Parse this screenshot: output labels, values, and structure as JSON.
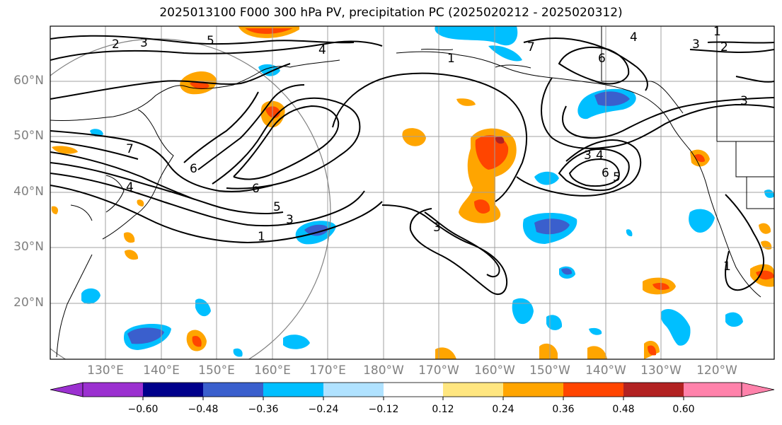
{
  "title": "2025013100 F000 300 hPa PV, precipitation PC (2025020212 - 2025020312)",
  "axes": {
    "lat_labels": [
      "60°N",
      "50°N",
      "40°N",
      "30°N",
      "20°N"
    ],
    "lon_labels": [
      "130°E",
      "140°E",
      "150°E",
      "160°E",
      "170°E",
      "180°W",
      "170°W",
      "160°W",
      "150°W",
      "140°W",
      "130°W",
      "120°W"
    ]
  },
  "colorbar": {
    "ticks": [
      "−0.60",
      "−0.48",
      "−0.36",
      "−0.24",
      "−0.12",
      "0.12",
      "0.24",
      "0.36",
      "0.48",
      "0.60"
    ],
    "colors": [
      "#9b30d0",
      "#00008b",
      "#3a5fcd",
      "#00bfff",
      "#b0e2ff",
      "#ffffff",
      "#ffe680",
      "#ffa500",
      "#ff4500",
      "#b22222",
      "#ff82ab"
    ]
  },
  "contour_labels": [
    "2",
    "3",
    "5",
    "4",
    "1",
    "7",
    "6",
    "5",
    "3",
    "1",
    "3",
    "6",
    "4",
    "3",
    "4",
    "6",
    "5",
    "1",
    "2",
    "3",
    "7",
    "4",
    "3",
    "1",
    "6"
  ]
}
